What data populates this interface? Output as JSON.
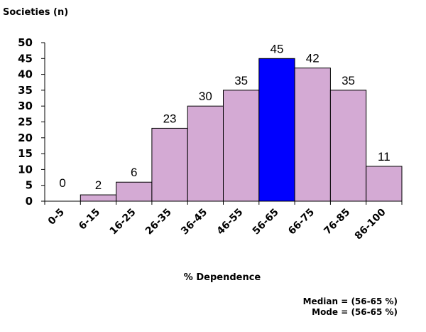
{
  "chart_data": {
    "type": "bar",
    "ylabel": "Societies (n)",
    "xlabel": "% Dependence",
    "categories": [
      "0-5",
      "6-15",
      "16-25",
      "26-35",
      "36-45",
      "46-55",
      "56-65",
      "66-75",
      "76-85",
      "86-100"
    ],
    "values": [
      0,
      2,
      6,
      23,
      30,
      35,
      45,
      42,
      35,
      11
    ],
    "ylim": [
      0,
      50
    ],
    "yticks": [
      0,
      5,
      10,
      15,
      20,
      25,
      30,
      35,
      40,
      45,
      50
    ],
    "grid": false,
    "colors": {
      "default": "#d4aad4",
      "highlight": "#0000ff",
      "edge": "#000000"
    },
    "highlight_category": "56-65",
    "annotations": [
      "Median = (56-65 %)",
      "Mode = (56-65 %)"
    ]
  }
}
